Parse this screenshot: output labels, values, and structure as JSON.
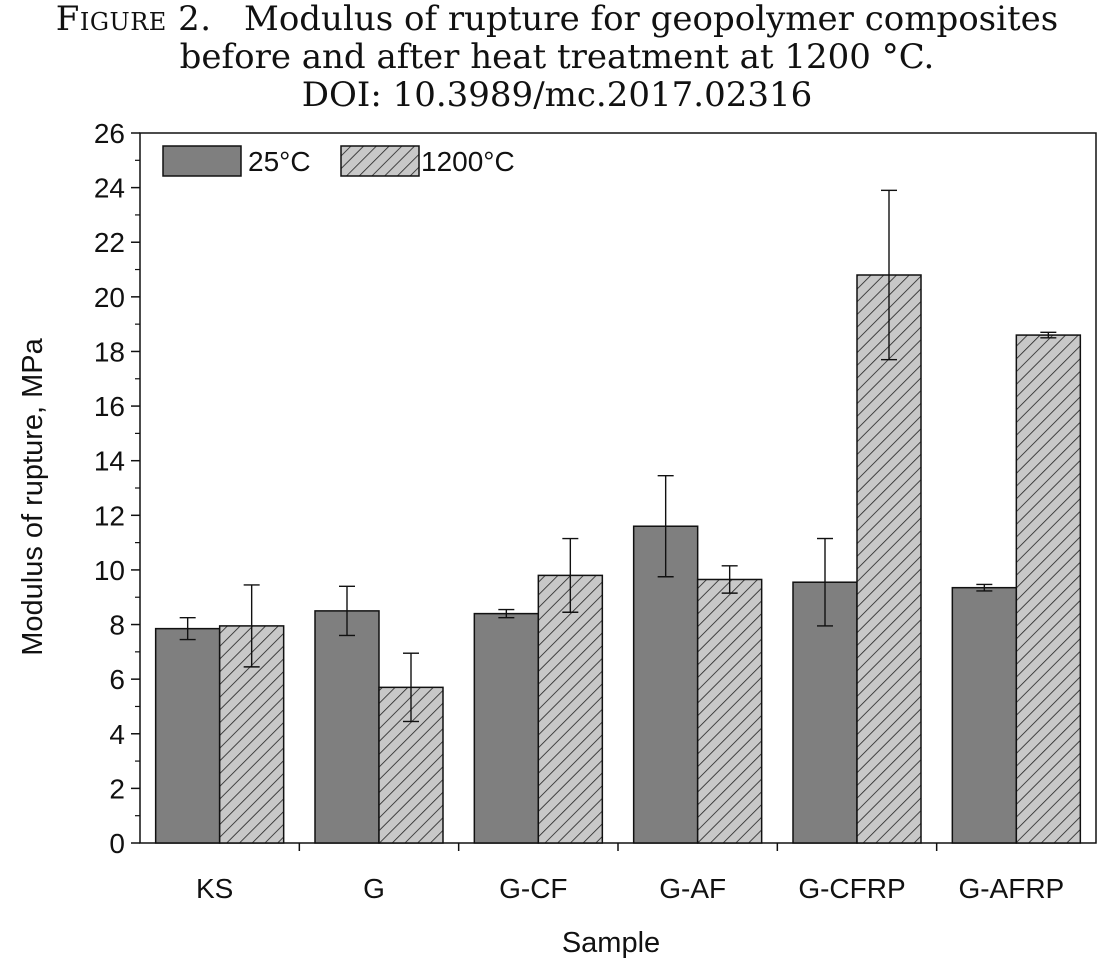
{
  "caption": {
    "label": "Figure 2.",
    "title_line1": "Modulus of rupture for geopolymer composites",
    "title_line2": "before and after heat treatment at 1200 °C.",
    "doi": "DOI: 10.3989/mc.2017.02316"
  },
  "chart_data": {
    "type": "bar",
    "categories": [
      "KS",
      "G",
      "G-CF",
      "G-AF",
      "G-CFRP",
      "G-AFRP"
    ],
    "series": [
      {
        "name": "25°C",
        "values": [
          7.85,
          8.5,
          8.4,
          11.6,
          9.55,
          9.35
        ],
        "errors": [
          0.4,
          0.9,
          0.15,
          1.85,
          1.6,
          0.12
        ],
        "color": "#7f7f7f",
        "pattern": "solid"
      },
      {
        "name": "1200°C",
        "values": [
          7.95,
          5.7,
          9.8,
          9.65,
          20.8,
          18.6
        ],
        "errors": [
          1.5,
          1.25,
          1.35,
          0.5,
          3.1,
          0.1
        ],
        "color": "#c8c8c8",
        "pattern": "hatch"
      }
    ],
    "xlabel": "Sample",
    "ylabel": "Modulus of rupture, MPa",
    "ylim": [
      0,
      26
    ],
    "yticks": [
      0,
      2,
      4,
      6,
      8,
      10,
      12,
      14,
      16,
      18,
      20,
      22,
      24,
      26
    ],
    "grid": false,
    "legend": "top-left"
  }
}
